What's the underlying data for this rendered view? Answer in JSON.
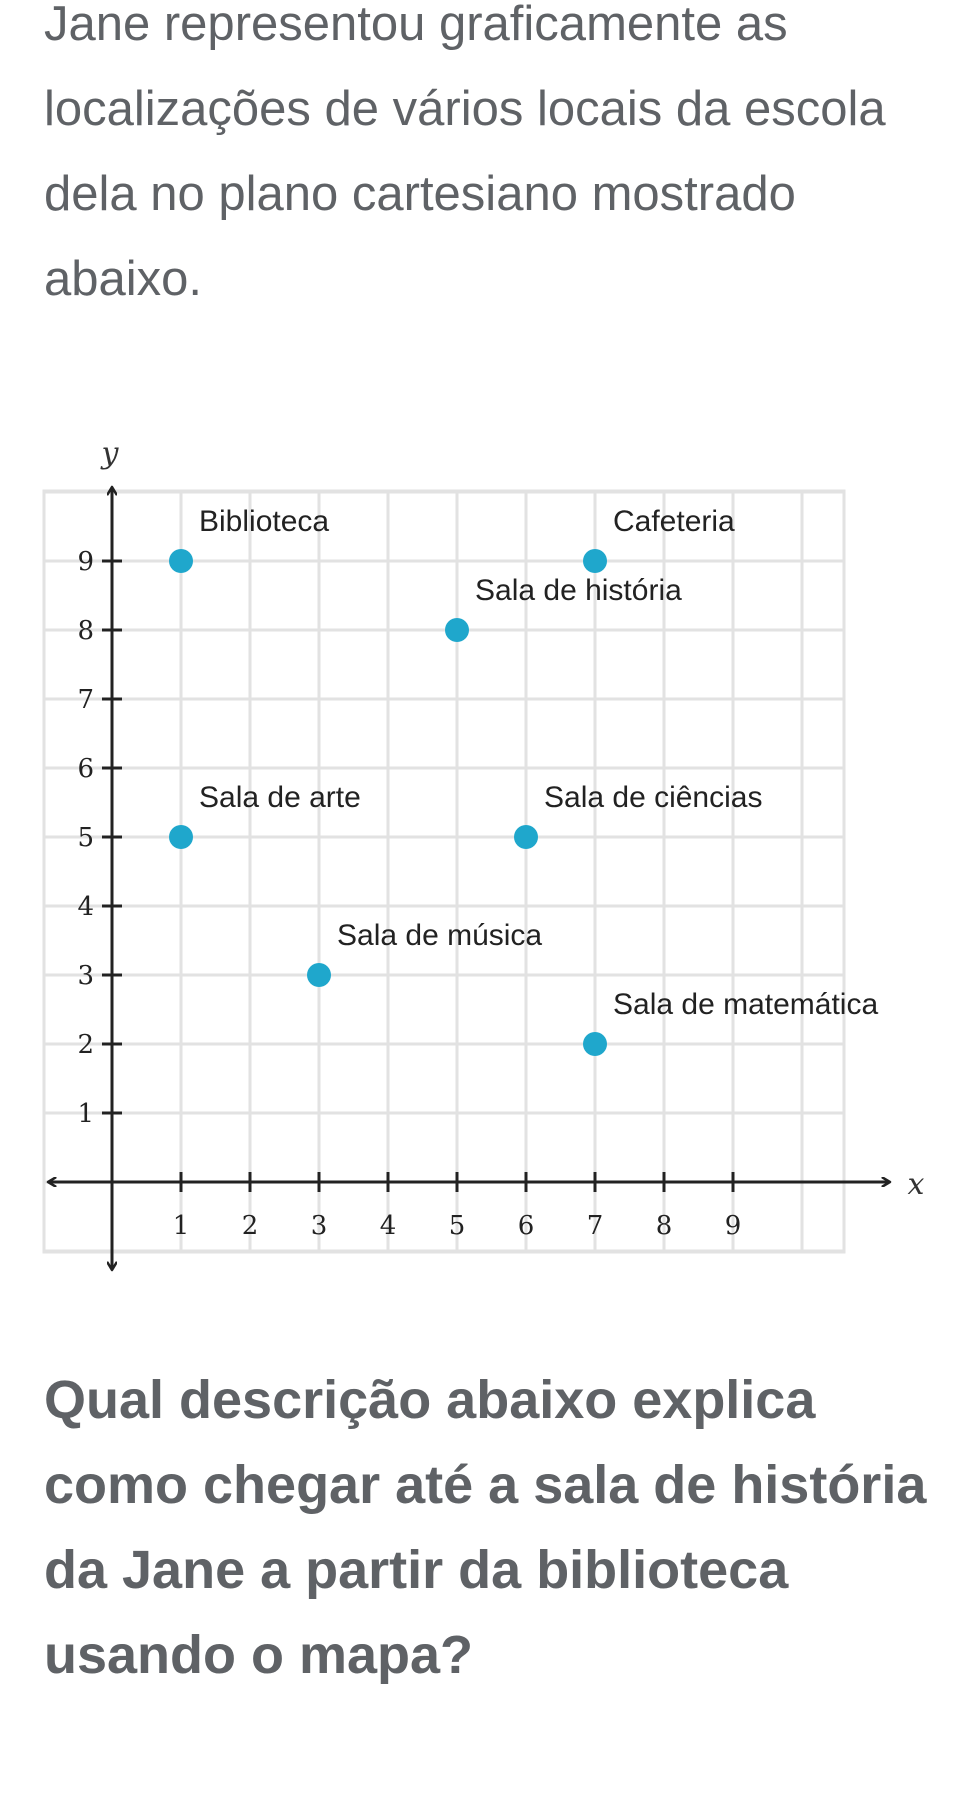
{
  "intro_text": "Jane representou graficamente as localizações de vários locais da escola dela no plano cartesiano mostrado abaixo.",
  "question_text": "Qual descrição abaixo explica como chegar até a sala de história da Jane a partir da biblioteca usando o mapa?",
  "colors": {
    "point": "#1fa7cc",
    "grid": "#e2e2e2",
    "axis": "#222222",
    "text": "#5f6266"
  },
  "chart_data": {
    "type": "scatter",
    "xlabel": "x",
    "ylabel": "y",
    "xlim": [
      0,
      10
    ],
    "ylim": [
      -1,
      10
    ],
    "grid": true,
    "x_ticks": [
      1,
      2,
      3,
      4,
      5,
      6,
      7,
      8,
      9
    ],
    "y_ticks": [
      1,
      2,
      3,
      4,
      5,
      6,
      7,
      8,
      9
    ],
    "points": [
      {
        "label": "Biblioteca",
        "x": 1,
        "y": 9
      },
      {
        "label": "Cafeteria",
        "x": 7,
        "y": 9
      },
      {
        "label": "Sala de história",
        "x": 5,
        "y": 8
      },
      {
        "label": "Sala de arte",
        "x": 1,
        "y": 5
      },
      {
        "label": "Sala de ciências",
        "x": 6,
        "y": 5
      },
      {
        "label": "Sala de música",
        "x": 3,
        "y": 3
      },
      {
        "label": "Sala de matemática",
        "x": 7,
        "y": 2
      }
    ]
  }
}
